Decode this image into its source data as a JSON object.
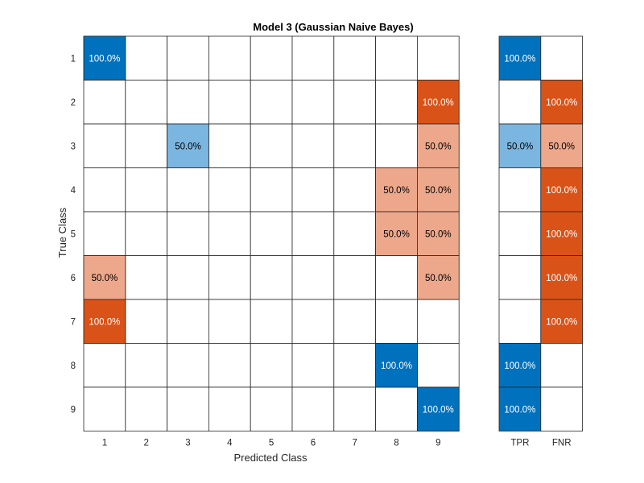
{
  "chart_data": {
    "type": "heatmap",
    "title": "Model 3 (Gaussian Naive Bayes)",
    "xlabel": "Predicted Class",
    "ylabel": "True Class",
    "row_labels": [
      "1",
      "2",
      "3",
      "4",
      "5",
      "6",
      "7",
      "8",
      "9"
    ],
    "col_labels": [
      "1",
      "2",
      "3",
      "4",
      "5",
      "6",
      "7",
      "8",
      "9"
    ],
    "cells": [
      {
        "row": "1",
        "col": "1",
        "value": 100.0,
        "label": "100.0%"
      },
      {
        "row": "2",
        "col": "9",
        "value": 100.0,
        "label": "100.0%"
      },
      {
        "row": "3",
        "col": "3",
        "value": 50.0,
        "label": "50.0%"
      },
      {
        "row": "3",
        "col": "9",
        "value": 50.0,
        "label": "50.0%"
      },
      {
        "row": "4",
        "col": "8",
        "value": 50.0,
        "label": "50.0%"
      },
      {
        "row": "4",
        "col": "9",
        "value": 50.0,
        "label": "50.0%"
      },
      {
        "row": "5",
        "col": "8",
        "value": 50.0,
        "label": "50.0%"
      },
      {
        "row": "5",
        "col": "9",
        "value": 50.0,
        "label": "50.0%"
      },
      {
        "row": "6",
        "col": "1",
        "value": 50.0,
        "label": "50.0%"
      },
      {
        "row": "6",
        "col": "9",
        "value": 50.0,
        "label": "50.0%"
      },
      {
        "row": "7",
        "col": "1",
        "value": 100.0,
        "label": "100.0%"
      },
      {
        "row": "8",
        "col": "8",
        "value": 100.0,
        "label": "100.0%"
      },
      {
        "row": "9",
        "col": "9",
        "value": 100.0,
        "label": "100.0%"
      }
    ],
    "summary": {
      "col_labels": [
        "TPR",
        "FNR"
      ],
      "values": [
        [
          100.0,
          null
        ],
        [
          null,
          100.0
        ],
        [
          50.0,
          50.0
        ],
        [
          null,
          100.0
        ],
        [
          null,
          100.0
        ],
        [
          null,
          100.0
        ],
        [
          null,
          100.0
        ],
        [
          100.0,
          null
        ],
        [
          100.0,
          null
        ]
      ],
      "labels": [
        [
          "100.0%",
          ""
        ],
        [
          "",
          "100.0%"
        ],
        [
          "50.0%",
          "50.0%"
        ],
        [
          "",
          "100.0%"
        ],
        [
          "",
          "100.0%"
        ],
        [
          "",
          "100.0%"
        ],
        [
          "",
          "100.0%"
        ],
        [
          "100.0%",
          ""
        ],
        [
          "100.0%",
          ""
        ]
      ]
    },
    "colors": {
      "correct_high": "#0072bd",
      "correct_low": "#7ab6e0",
      "incorrect_high": "#d95319",
      "incorrect_low": "#eda78b",
      "grid": "#262626"
    }
  }
}
